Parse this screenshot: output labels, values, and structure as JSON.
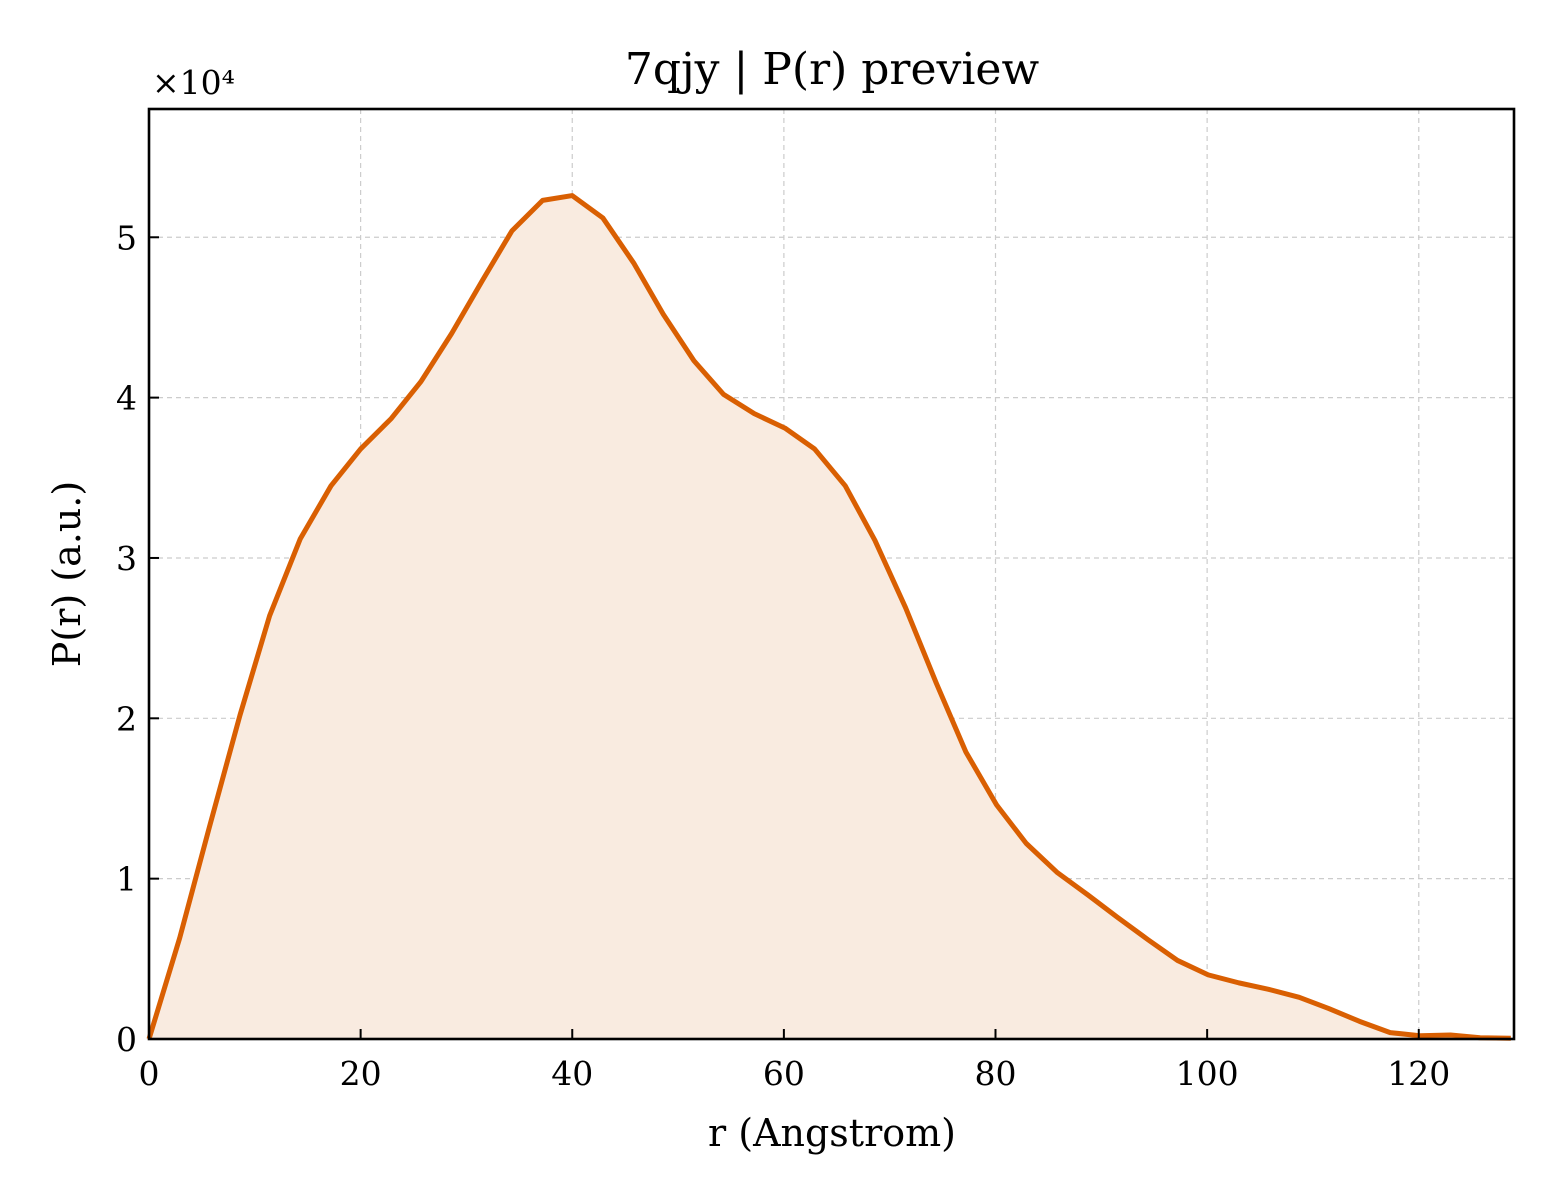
{
  "chart_data": {
    "type": "area",
    "title": "7qjy | P(r) preview",
    "xlabel": "r (Angstrom)",
    "ylabel": "P(r) (a.u.)",
    "y_multiplier_label": "×10⁴",
    "y_multiplier": 10000,
    "xlim": [
      0,
      129
    ],
    "ylim": [
      0,
      58000
    ],
    "x_ticks": [
      0,
      20,
      40,
      60,
      80,
      100,
      120
    ],
    "y_ticks": [
      0,
      10000,
      20000,
      30000,
      40000,
      50000
    ],
    "y_tick_labels": [
      "0",
      "1",
      "2",
      "3",
      "4",
      "5"
    ],
    "x_tick_labels": [
      "0",
      "20",
      "40",
      "60",
      "80",
      "100",
      "120"
    ],
    "grid": true,
    "line_color": "#d95f02",
    "fill_color": "#f9ebe0",
    "series": [
      {
        "x": [
          0,
          2.9,
          5.7,
          8.6,
          11.4,
          14.3,
          17.2,
          20.0,
          22.9,
          25.7,
          28.6,
          31.5,
          34.3,
          37.2,
          40.0,
          42.9,
          45.8,
          48.6,
          51.5,
          54.3,
          57.2,
          60.1,
          62.9,
          65.8,
          68.6,
          71.5,
          74.4,
          77.2,
          80.1,
          82.9,
          85.8,
          88.7,
          91.5,
          94.4,
          97.2,
          100.1,
          103.0,
          105.8,
          108.7,
          111.5,
          114.4,
          117.3,
          120.1,
          123.0,
          125.8,
          128.7
        ],
        "y": [
          0,
          6300,
          13200,
          20200,
          26400,
          31200,
          34500,
          36800,
          38700,
          41000,
          44000,
          47300,
          50400,
          52300,
          52600,
          51200,
          48400,
          45200,
          42300,
          40200,
          39000,
          38100,
          36800,
          34500,
          31100,
          26900,
          22200,
          17900,
          14600,
          12200,
          10400,
          9000,
          7600,
          6200,
          4900,
          4000,
          3500,
          3100,
          2600,
          1900,
          1100,
          400,
          200,
          250,
          80,
          50
        ]
      }
    ]
  }
}
